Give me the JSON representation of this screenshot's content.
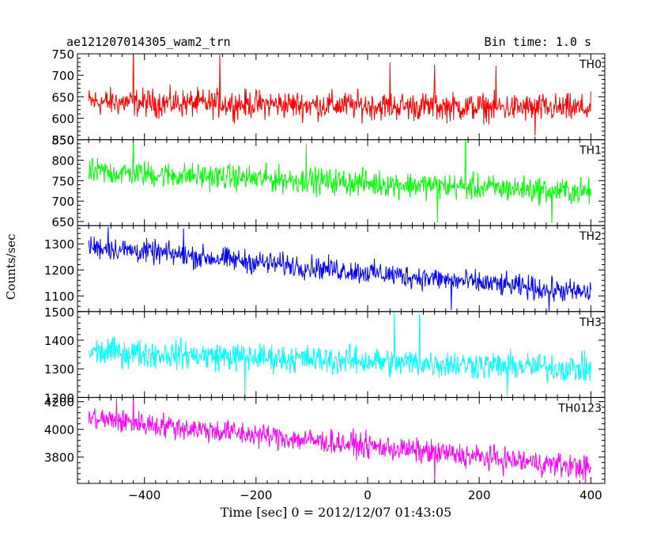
{
  "header": {
    "title": "ae121207014305_wam2_trn",
    "bin_time": "Bin time: 1.0 s"
  },
  "chart_data": {
    "type": "line",
    "xlabel": "Time [sec] 0 = 2012/12/07 01:43:05",
    "ylabel": "Counts/sec",
    "xlim": [
      -520,
      425
    ],
    "x_start": -500,
    "x_end": 400,
    "x_step": 1,
    "x_ticks": [
      -400,
      -200,
      0,
      200,
      400
    ],
    "panels": [
      {
        "name": "TH0",
        "color": "#ff0000",
        "ylim": [
          550,
          750
        ],
        "y_ticks": [
          550,
          600,
          650,
          700,
          750
        ],
        "trend": {
          "start": 638,
          "end": 622
        },
        "noise_range": 28,
        "spikes": [
          {
            "x": -420,
            "y": 748
          },
          {
            "x": -265,
            "y": 748
          },
          {
            "x": 40,
            "y": 730
          },
          {
            "x": 120,
            "y": 725
          },
          {
            "x": 230,
            "y": 722
          },
          {
            "x": 300,
            "y": 560
          }
        ]
      },
      {
        "name": "TH1",
        "color": "#00ff00",
        "ylim": [
          640,
          850
        ],
        "y_ticks": [
          650,
          700,
          750,
          800,
          850
        ],
        "trend": {
          "start": 772,
          "end": 722
        },
        "noise_range": 27,
        "spikes": [
          {
            "x": -420,
            "y": 843
          },
          {
            "x": -110,
            "y": 840
          },
          {
            "x": 175,
            "y": 848
          },
          {
            "x": 125,
            "y": 647
          },
          {
            "x": 330,
            "y": 647
          }
        ]
      },
      {
        "name": "TH2",
        "color": "#0000ff",
        "ylim": [
          1040,
          1370
        ],
        "y_ticks": [
          1100,
          1200,
          1300
        ],
        "trend": {
          "start": 1290,
          "end": 1110
        },
        "noise_range": 38,
        "spikes": [
          {
            "x": -465,
            "y": 1365
          },
          {
            "x": -330,
            "y": 1360
          },
          {
            "x": 150,
            "y": 1045
          },
          {
            "x": 325,
            "y": 1042
          }
        ]
      },
      {
        "name": "TH3",
        "color": "#00ffff",
        "ylim": [
          1200,
          1500
        ],
        "y_ticks": [
          1200,
          1300,
          1400,
          1500
        ],
        "trend": {
          "start": 1360,
          "end": 1300
        },
        "noise_range": 42,
        "spikes": [
          {
            "x": 48,
            "y": 1500
          },
          {
            "x": 93,
            "y": 1492
          },
          {
            "x": -220,
            "y": 1205
          },
          {
            "x": 250,
            "y": 1203
          }
        ]
      },
      {
        "name": "TH0123",
        "color": "#ff00ff",
        "ylim": [
          3610,
          4230
        ],
        "y_ticks": [
          3800,
          4000,
          4200
        ],
        "trend": {
          "start": 4080,
          "end": 3720
        },
        "noise_range": 75,
        "spikes": [
          {
            "x": -450,
            "y": 4225
          },
          {
            "x": -420,
            "y": 4215
          },
          {
            "x": 120,
            "y": 3615
          },
          {
            "x": 390,
            "y": 3612
          }
        ]
      }
    ]
  }
}
